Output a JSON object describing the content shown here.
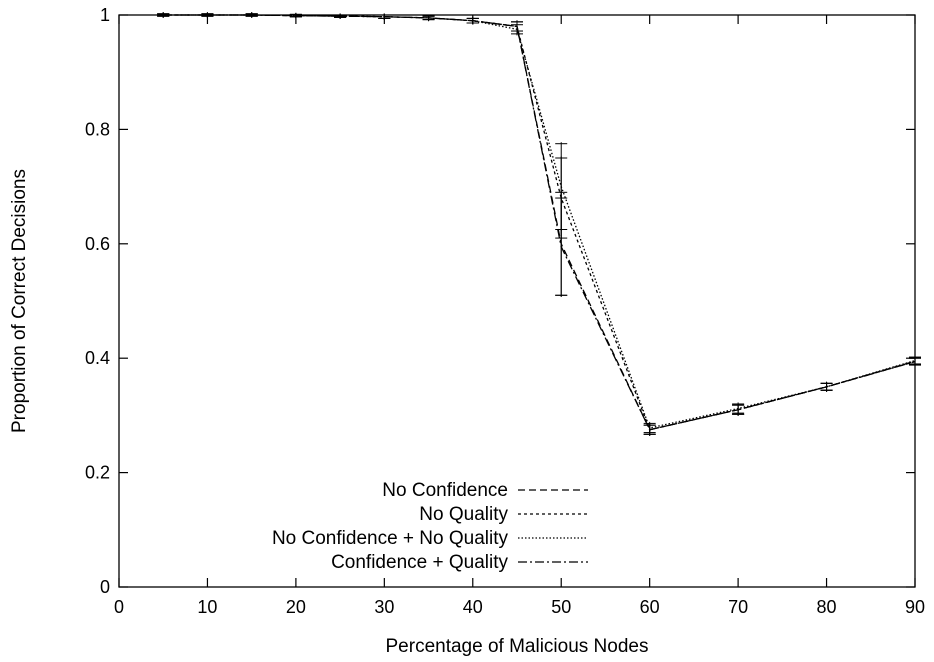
{
  "chart_data": {
    "type": "line",
    "title": "",
    "xlabel": "Percentage of Malicious Nodes",
    "ylabel": "Proportion of Correct Decisions",
    "xlim": [
      0,
      90
    ],
    "ylim": [
      0,
      1
    ],
    "xticks": [
      0,
      10,
      20,
      30,
      40,
      50,
      60,
      70,
      80,
      90
    ],
    "yticks": [
      0,
      0.2,
      0.4,
      0.6,
      0.8,
      1
    ],
    "ytick_labels": [
      "0",
      "0.2",
      "0.4",
      "0.6",
      "0.8",
      "1"
    ],
    "grid": false,
    "legend_position": "bottom-center",
    "x": [
      5,
      10,
      15,
      20,
      25,
      30,
      35,
      40,
      45,
      50,
      60,
      70,
      80,
      90
    ],
    "series": [
      {
        "name": "No Confidence",
        "values": [
          1.0,
          1.0,
          1.0,
          0.999,
          0.998,
          0.997,
          0.995,
          0.99,
          0.98,
          0.6,
          0.275,
          0.31,
          0.35,
          0.395
        ],
        "errors": [
          0.002,
          0.002,
          0.002,
          0.002,
          0.002,
          0.003,
          0.003,
          0.004,
          0.008,
          0.09,
          0.008,
          0.008,
          0.006,
          0.006
        ],
        "dash": "7,4"
      },
      {
        "name": "No Quality",
        "values": [
          1.0,
          1.0,
          1.0,
          0.999,
          0.998,
          0.997,
          0.995,
          0.99,
          0.98,
          0.68,
          0.275,
          0.31,
          0.35,
          0.394
        ],
        "errors": [
          0.002,
          0.002,
          0.002,
          0.002,
          0.002,
          0.003,
          0.003,
          0.004,
          0.008,
          0.07,
          0.008,
          0.008,
          0.006,
          0.006
        ],
        "dash": "3,3"
      },
      {
        "name": "No Confidence + No Quality",
        "values": [
          1.0,
          1.0,
          1.0,
          0.999,
          0.998,
          0.997,
          0.995,
          0.99,
          0.975,
          0.7,
          0.278,
          0.312,
          0.35,
          0.396
        ],
        "errors": [
          0.002,
          0.002,
          0.002,
          0.002,
          0.002,
          0.003,
          0.003,
          0.004,
          0.008,
          0.075,
          0.008,
          0.008,
          0.006,
          0.006
        ],
        "dash": "1.5,2"
      },
      {
        "name": "Confidence + Quality",
        "values": [
          1.0,
          1.0,
          1.0,
          0.999,
          0.998,
          0.997,
          0.995,
          0.99,
          0.98,
          0.595,
          0.275,
          0.31,
          0.35,
          0.394
        ],
        "errors": [
          0.002,
          0.002,
          0.002,
          0.002,
          0.002,
          0.003,
          0.003,
          0.004,
          0.008,
          0.085,
          0.008,
          0.008,
          0.006,
          0.006
        ],
        "dash": "9,3,2,3"
      }
    ]
  }
}
